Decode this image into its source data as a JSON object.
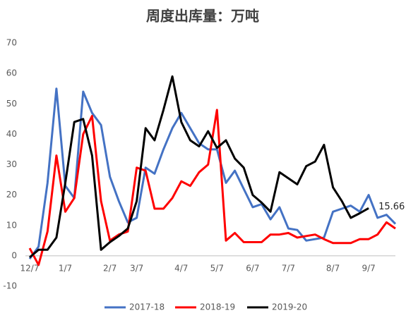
{
  "chart_data": {
    "type": "line",
    "title": "周度出库量：万吨",
    "categories": [
      "12/7",
      null,
      null,
      null,
      "1/7",
      null,
      null,
      null,
      null,
      "2/7",
      null,
      null,
      "3/7",
      null,
      null,
      null,
      null,
      "4/7",
      null,
      null,
      null,
      "5/7",
      null,
      null,
      null,
      "6/7",
      null,
      null,
      null,
      "7/7",
      null,
      null,
      null,
      null,
      "8/7",
      null,
      null,
      null,
      "9/7",
      null,
      null,
      null
    ],
    "series": [
      {
        "name": "2017-18",
        "color": "#4472c4",
        "values": [
          -1,
          3,
          24,
          55,
          23,
          19,
          54,
          47,
          43,
          26,
          18,
          11,
          12.5,
          29,
          27,
          35,
          42,
          47,
          42,
          37,
          35,
          35,
          24,
          28,
          22,
          16,
          17,
          12,
          16,
          9,
          8.5,
          5,
          5.5,
          6,
          14.5,
          15.5,
          16.5,
          14.5,
          20,
          12.5,
          13.5,
          10.5
        ]
      },
      {
        "name": "2018-19",
        "color": "#ff0000",
        "values": [
          2.5,
          -3,
          8,
          33,
          14.5,
          19,
          40,
          46,
          18,
          5,
          7,
          8,
          29,
          28,
          15.5,
          15.5,
          19,
          24.5,
          23,
          27.5,
          30,
          48,
          5,
          7.5,
          4.5,
          4.5,
          4.5,
          7,
          7,
          7.5,
          6,
          6.5,
          7,
          5.5,
          4.2,
          4.2,
          4.2,
          5.5,
          5.5,
          7,
          11,
          9
        ]
      },
      {
        "name": "2019-20",
        "color": "#000000",
        "values": [
          -0.5,
          2,
          2,
          6,
          24,
          44,
          45,
          33,
          2,
          4.5,
          6.5,
          9,
          18,
          42,
          38,
          48,
          59,
          44,
          38,
          36,
          41,
          35.5,
          38,
          32,
          29,
          20,
          17.5,
          14.5,
          27.5,
          25.5,
          23.5,
          29.5,
          31,
          36.5,
          22.5,
          18,
          12.5,
          14,
          15.66,
          null,
          null,
          null
        ]
      }
    ],
    "annotation_index": 38,
    "ylim": [
      -10,
      70
    ],
    "yticks": [
      -10,
      0,
      10,
      20,
      30,
      40,
      50,
      60,
      70
    ],
    "grid": false,
    "legend": "bottom"
  }
}
